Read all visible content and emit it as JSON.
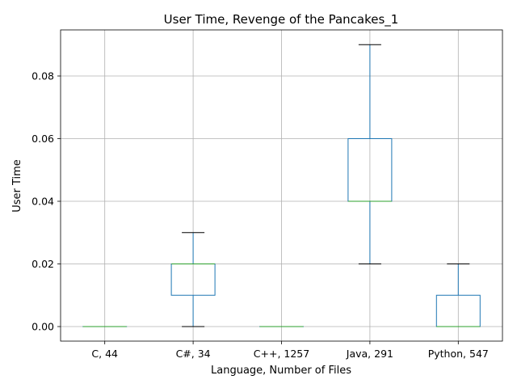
{
  "chart_data": {
    "type": "box",
    "title": "User Time, Revenge of the Pancakes_1",
    "xlabel": "Language, Number of Files",
    "ylabel": "User Time",
    "ylim": [
      -0.0045,
      0.0945
    ],
    "yticks": [
      0.0,
      0.02,
      0.04,
      0.06,
      0.08
    ],
    "ytick_labels": [
      "0.00",
      "0.02",
      "0.04",
      "0.06",
      "0.08"
    ],
    "grid": true,
    "categories": [
      "C, 44",
      "C#, 34",
      "C++, 1257",
      "Java, 291",
      "Python, 547"
    ],
    "boxes": [
      {
        "min": 0.0,
        "q1": 0.0,
        "median": 0.0,
        "q3": 0.0,
        "max": 0.0
      },
      {
        "min": 0.0,
        "q1": 0.01,
        "median": 0.02,
        "q3": 0.02,
        "max": 0.03
      },
      {
        "min": 0.0,
        "q1": 0.0,
        "median": 0.0,
        "q3": 0.0,
        "max": 0.0
      },
      {
        "min": 0.02,
        "q1": 0.04,
        "median": 0.04,
        "q3": 0.06,
        "max": 0.09
      },
      {
        "min": 0.0,
        "q1": 0.0,
        "median": 0.0,
        "q3": 0.01,
        "max": 0.02
      }
    ],
    "colors": {
      "box": "#1f77b4",
      "median": "#2ca02c",
      "cap": "#000000",
      "grid": "#b0b0b0"
    }
  }
}
